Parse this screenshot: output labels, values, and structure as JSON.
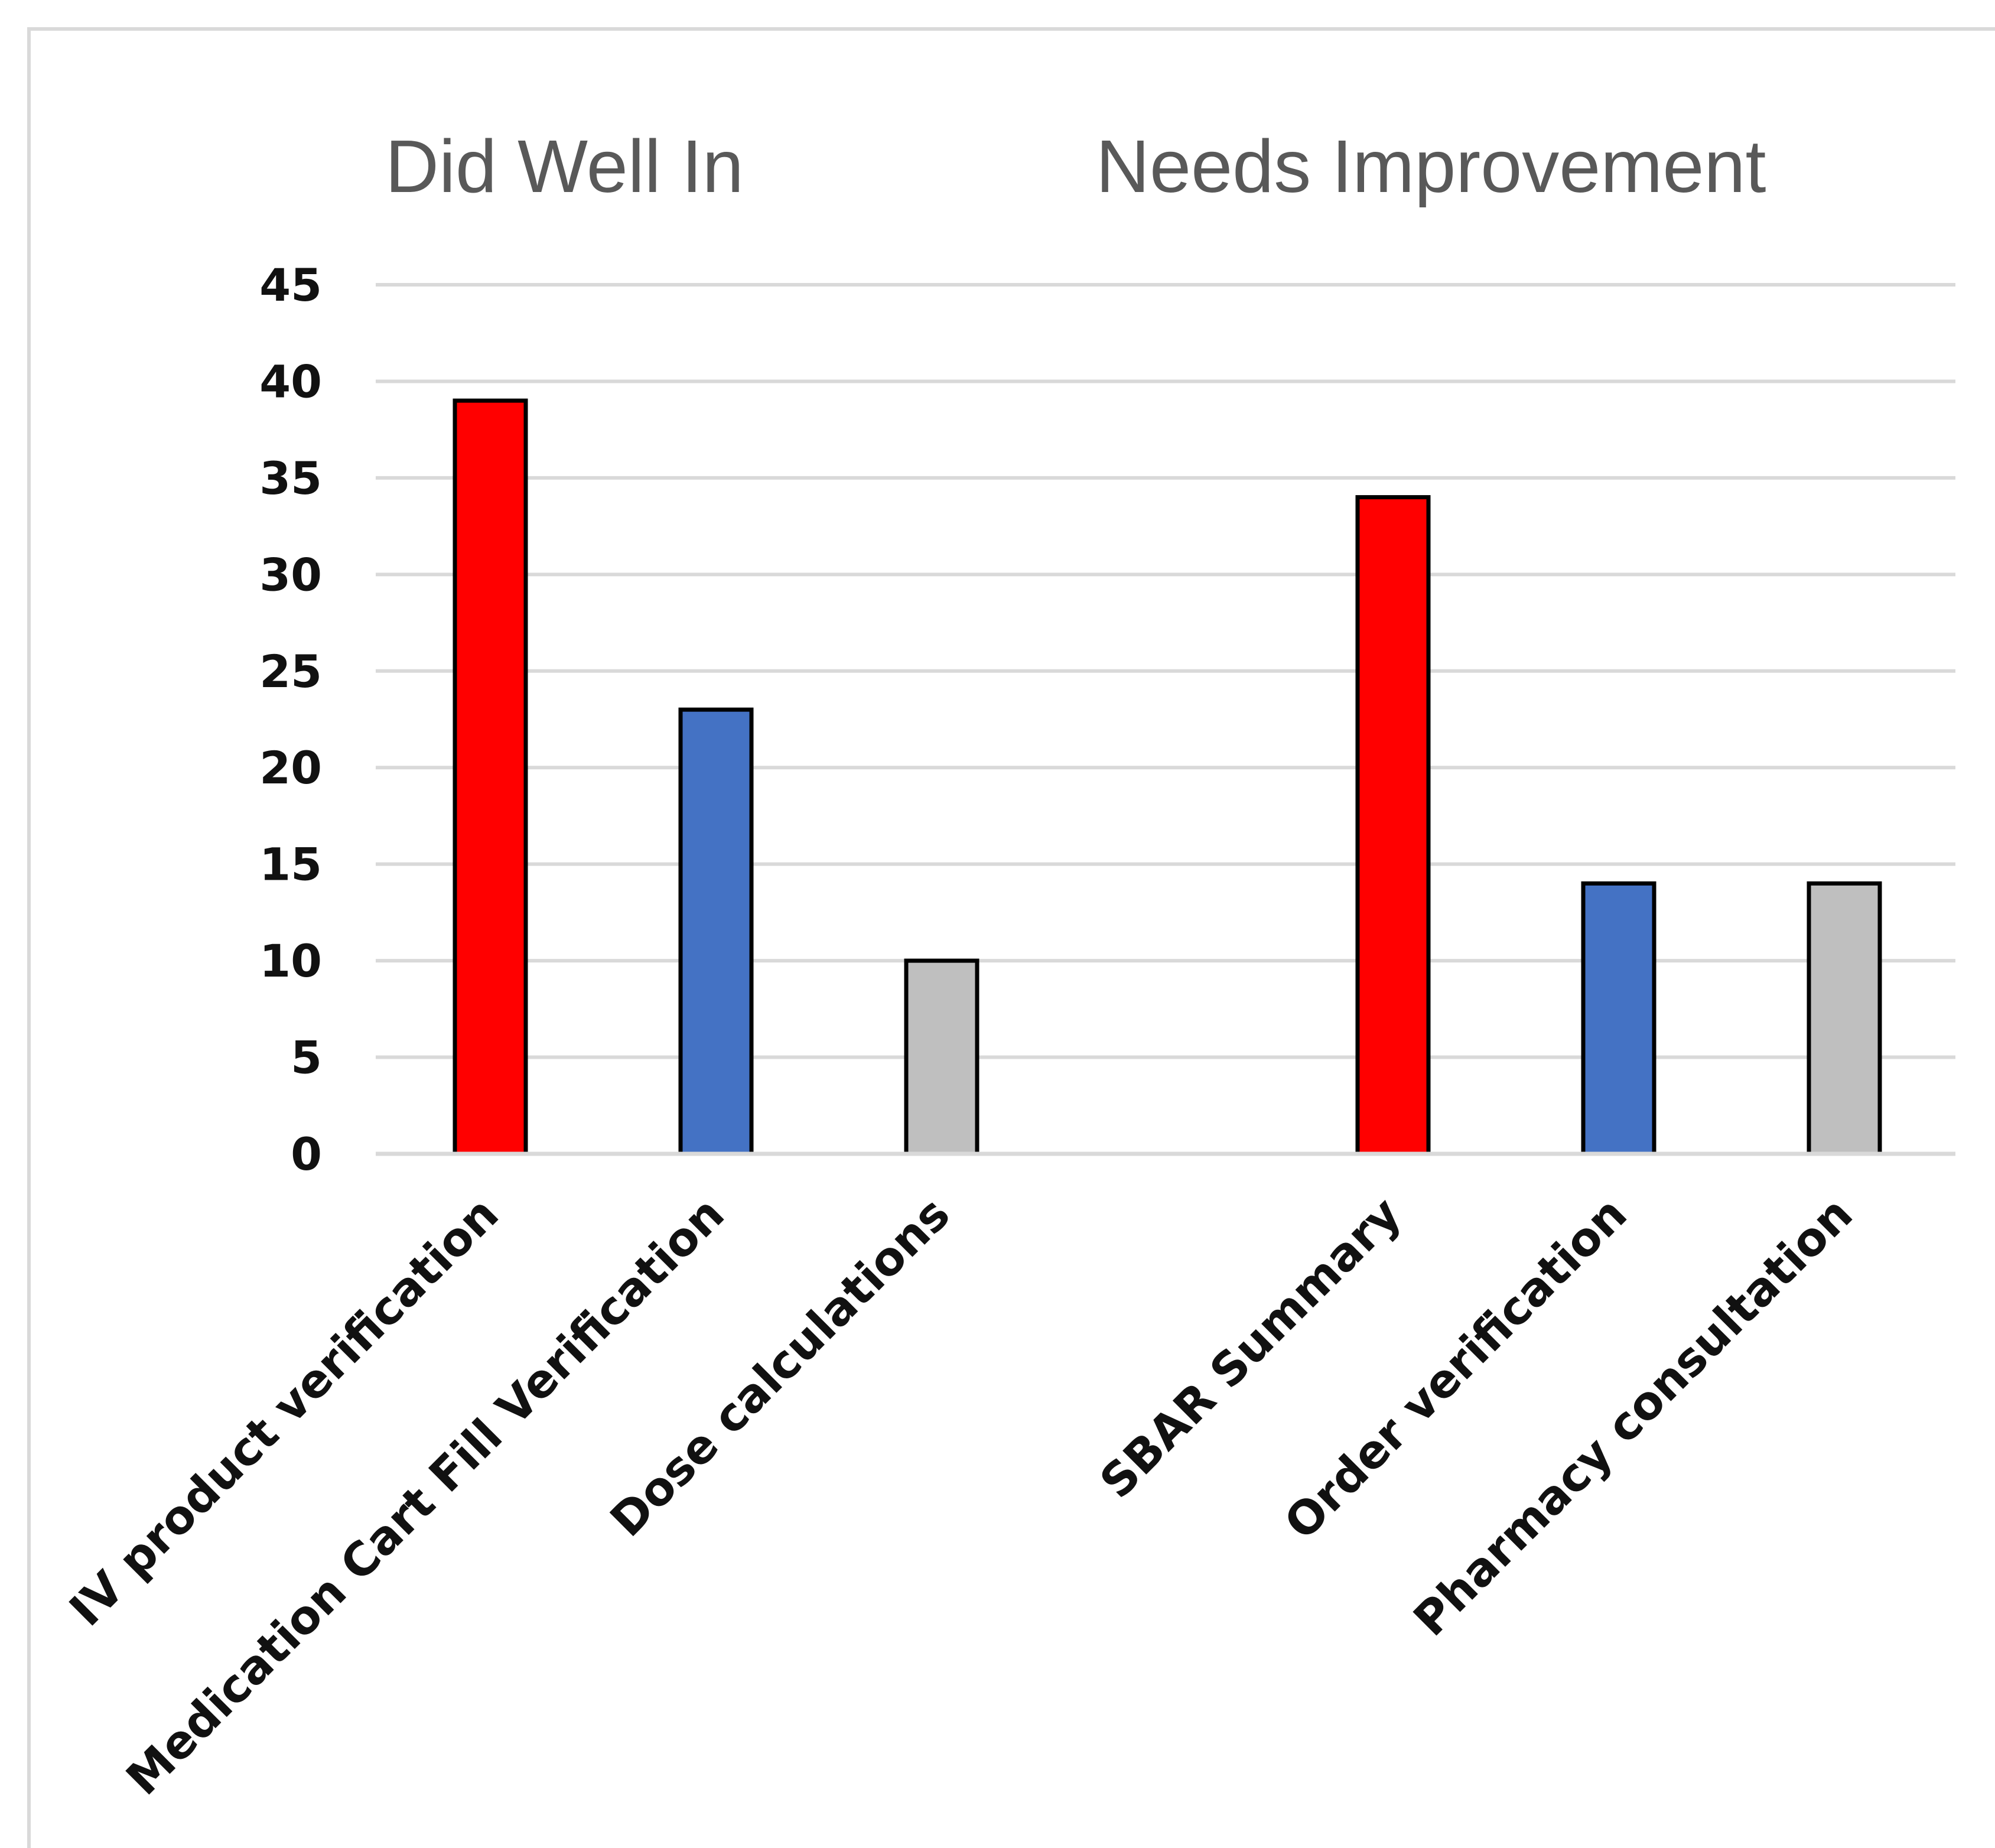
{
  "chart_data": {
    "type": "bar",
    "title": "",
    "xlabel": "",
    "ylabel": "",
    "ylim": [
      0,
      45
    ],
    "yticks": [
      0,
      5,
      10,
      15,
      20,
      25,
      30,
      35,
      40,
      45
    ],
    "grid": true,
    "legend": "none",
    "groups": [
      {
        "title": "Did Well In",
        "categories": [
          "IV product verification",
          "Medication Cart Fill Verification",
          "Dose calculations"
        ],
        "values": [
          39,
          23,
          10
        ]
      },
      {
        "title": "Needs Improvement",
        "categories": [
          "SBAR Summary",
          "Order verification",
          "Pharmacy consultation"
        ],
        "values": [
          34,
          14,
          14
        ]
      }
    ],
    "bar_colors": [
      "#ff0000",
      "#4472c4",
      "#bfbfbf"
    ],
    "gridline_color": "#d9d9d9"
  }
}
